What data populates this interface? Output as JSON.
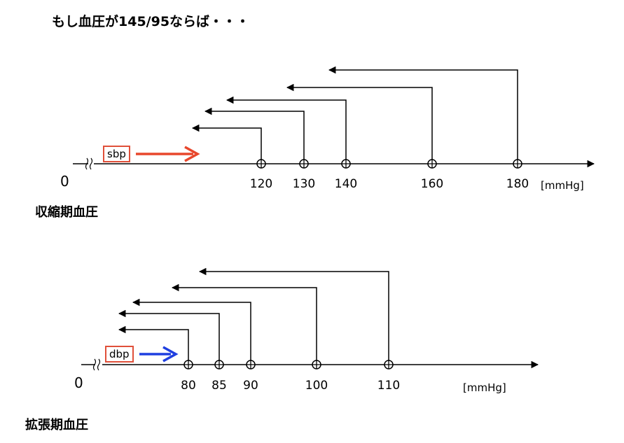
{
  "title": "もし血圧が145/95ならば・・・",
  "systolic": {
    "section_label": "収縮期血圧",
    "zero_label": "0",
    "box_label": "sbp",
    "arrow_color": "#e8472c",
    "ticks": [
      "120",
      "130",
      "140",
      "160",
      "180"
    ],
    "unit": "[mmHg]"
  },
  "diastolic": {
    "section_label": "拡張期血圧",
    "zero_label": "0",
    "box_label": "dbp",
    "arrow_color": "#1f3fe0",
    "ticks": [
      "80",
      "85",
      "90",
      "100",
      "110"
    ],
    "unit": "[mmHg]"
  },
  "colors": {
    "box_border": "#e0503a",
    "line": "#000000"
  }
}
